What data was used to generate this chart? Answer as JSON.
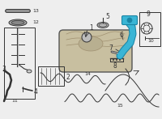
{
  "bg_color": "#eeeeee",
  "highlight_color": "#3ab5d5",
  "highlight_dark": "#1a85a5",
  "line_color": "#555555",
  "dark_color": "#333333",
  "tank_color": "#c8bfa0",
  "tank_edge": "#555555",
  "fig_width": 2.0,
  "fig_height": 1.47,
  "dpi": 100
}
